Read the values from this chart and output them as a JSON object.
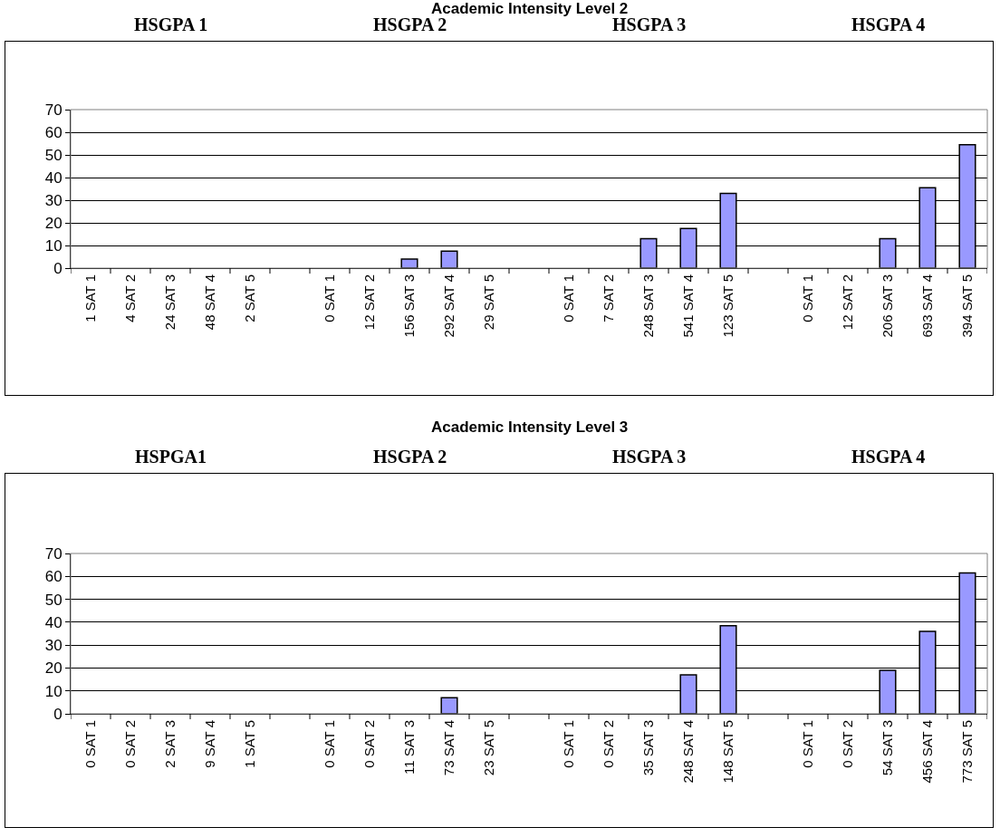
{
  "chart_data": [
    {
      "type": "bar",
      "title": "Academic Intensity Level 2",
      "annotations": [
        "HSGPA 1",
        "HSGPA 2",
        "HSGPA 3",
        "HSGPA 4"
      ],
      "categories": [
        "1 SAT 1",
        "4 SAT 2",
        "24 SAT 3",
        "48 SAT 4",
        "2 SAT 5",
        null,
        "0 SAT 1",
        "12 SAT 2",
        "156 SAT 3",
        "292 SAT 4",
        "29 SAT 5",
        null,
        "0 SAT 1",
        "7 SAT 2",
        "248 SAT 3",
        "541 SAT 4",
        "123 SAT 5",
        null,
        "0 SAT 1",
        "12 SAT 2",
        "206 SAT 3",
        "693 SAT 4",
        "394 SAT 5"
      ],
      "values": [
        0,
        0,
        0,
        0,
        0,
        null,
        0,
        0,
        4,
        7.5,
        0,
        null,
        0,
        0,
        13,
        17.5,
        33,
        null,
        0,
        0,
        13,
        35.5,
        54.5
      ],
      "color": "#9999ff",
      "ylim": [
        0,
        70
      ],
      "yticks": [
        0,
        10,
        20,
        30,
        40,
        50,
        60,
        70
      ],
      "grid": "y"
    },
    {
      "type": "bar",
      "title": "Academic Intensity Level 3",
      "annotations": [
        "HSPGA1",
        "HSGPA 2",
        "HSGPA 3",
        "HSGPA 4"
      ],
      "categories": [
        "0 SAT 1",
        "0 SAT 2",
        "2 SAT 3",
        "9 SAT 4",
        "1 SAT 5",
        null,
        "0 SAT 1",
        "0 SAT 2",
        "11 SAT 3",
        "73 SAT 4",
        "23 SAT 5",
        null,
        "0 SAT 1",
        "0 SAT 2",
        "35 SAT 3",
        "248 SAT 4",
        "148 SAT 5",
        null,
        "0 SAT 1",
        "0 SAT 2",
        "54 SAT 3",
        "456 SAT 4",
        "773 SAT 5"
      ],
      "values": [
        0,
        0,
        0,
        0,
        0,
        null,
        0,
        0,
        0,
        7,
        0,
        null,
        0,
        0,
        0,
        17,
        38.5,
        null,
        0,
        0,
        19,
        36,
        61.5
      ],
      "color": "#9999ff",
      "ylim": [
        0,
        70
      ],
      "yticks": [
        0,
        10,
        20,
        30,
        40,
        50,
        60,
        70
      ],
      "grid": "y"
    }
  ]
}
